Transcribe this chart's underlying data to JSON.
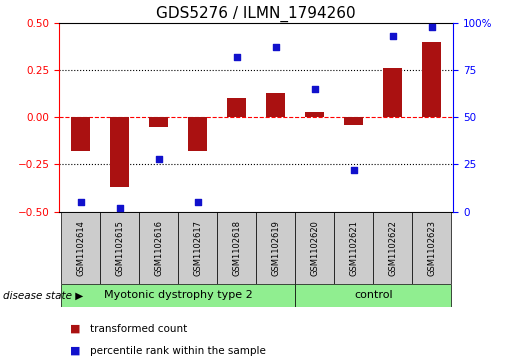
{
  "title": "GDS5276 / ILMN_1794260",
  "samples": [
    "GSM1102614",
    "GSM1102615",
    "GSM1102616",
    "GSM1102617",
    "GSM1102618",
    "GSM1102619",
    "GSM1102620",
    "GSM1102621",
    "GSM1102622",
    "GSM1102623"
  ],
  "transformed_count": [
    -0.18,
    -0.37,
    -0.05,
    -0.18,
    0.1,
    0.13,
    0.03,
    -0.04,
    0.26,
    0.4
  ],
  "percentile_rank": [
    5,
    2,
    28,
    5,
    82,
    87,
    65,
    22,
    93,
    98
  ],
  "bar_color": "#aa1111",
  "dot_color": "#1111cc",
  "ylim_left": [
    -0.5,
    0.5
  ],
  "ylim_right": [
    0,
    100
  ],
  "yticks_left": [
    -0.5,
    -0.25,
    0.0,
    0.25,
    0.5
  ],
  "yticks_right": [
    0,
    25,
    50,
    75,
    100
  ],
  "group1_label": "Myotonic dystrophy type 2",
  "group2_label": "control",
  "group1_indices": [
    0,
    1,
    2,
    3,
    4,
    5
  ],
  "group2_indices": [
    6,
    7,
    8,
    9
  ],
  "disease_state_label": "disease state",
  "legend_bar_label": "transformed count",
  "legend_dot_label": "percentile rank within the sample",
  "group_bg_color": "#cccccc",
  "group_fill": "#90ee90",
  "bar_width": 0.5,
  "title_fontsize": 11,
  "tick_fontsize": 7.5,
  "sample_fontsize": 6,
  "group_fontsize": 8
}
